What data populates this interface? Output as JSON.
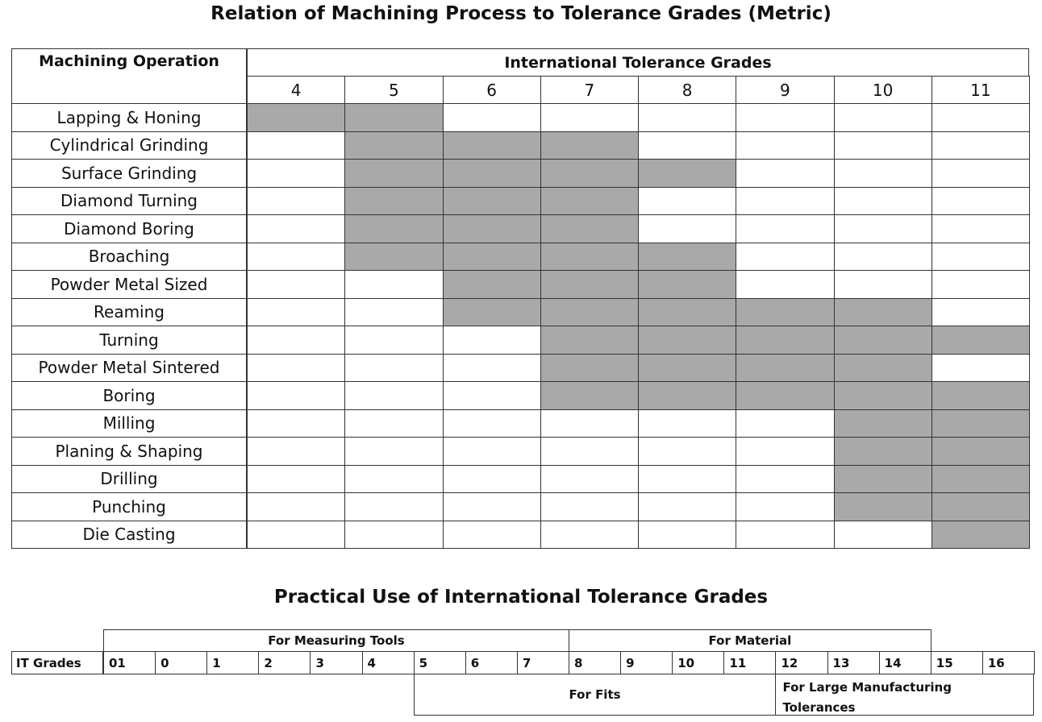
{
  "machining": {
    "title": "Relation of Machining Process to Tolerance Grades (Metric)",
    "operation_header": "Machining Operation",
    "grades_header": "International Tolerance Grades",
    "grades": [
      "4",
      "5",
      "6",
      "7",
      "8",
      "9",
      "10",
      "11"
    ],
    "rows": [
      {
        "operation": "Lapping & Honing",
        "shaded": [
          true,
          true,
          false,
          false,
          false,
          false,
          false,
          false
        ]
      },
      {
        "operation": "Cylindrical Grinding",
        "shaded": [
          false,
          true,
          true,
          true,
          false,
          false,
          false,
          false
        ]
      },
      {
        "operation": "Surface Grinding",
        "shaded": [
          false,
          true,
          true,
          true,
          true,
          false,
          false,
          false
        ]
      },
      {
        "operation": "Diamond Turning",
        "shaded": [
          false,
          true,
          true,
          true,
          false,
          false,
          false,
          false
        ]
      },
      {
        "operation": "Diamond Boring",
        "shaded": [
          false,
          true,
          true,
          true,
          false,
          false,
          false,
          false
        ]
      },
      {
        "operation": "Broaching",
        "shaded": [
          false,
          true,
          true,
          true,
          true,
          false,
          false,
          false
        ]
      },
      {
        "operation": "Powder Metal Sized",
        "shaded": [
          false,
          false,
          true,
          true,
          true,
          false,
          false,
          false
        ]
      },
      {
        "operation": "Reaming",
        "shaded": [
          false,
          false,
          true,
          true,
          true,
          true,
          true,
          false
        ]
      },
      {
        "operation": "Turning",
        "shaded": [
          false,
          false,
          false,
          true,
          true,
          true,
          true,
          true
        ]
      },
      {
        "operation": "Powder Metal Sintered",
        "shaded": [
          false,
          false,
          false,
          true,
          true,
          true,
          true,
          false
        ]
      },
      {
        "operation": "Boring",
        "shaded": [
          false,
          false,
          false,
          true,
          true,
          true,
          true,
          true
        ]
      },
      {
        "operation": "Milling",
        "shaded": [
          false,
          false,
          false,
          false,
          false,
          false,
          true,
          true
        ]
      },
      {
        "operation": "Planing & Shaping",
        "shaded": [
          false,
          false,
          false,
          false,
          false,
          false,
          true,
          true
        ]
      },
      {
        "operation": "Drilling",
        "shaded": [
          false,
          false,
          false,
          false,
          false,
          false,
          true,
          true
        ]
      },
      {
        "operation": "Punching",
        "shaded": [
          false,
          false,
          false,
          false,
          false,
          false,
          true,
          true
        ]
      },
      {
        "operation": "Die Casting",
        "shaded": [
          false,
          false,
          false,
          false,
          false,
          false,
          false,
          true
        ]
      }
    ],
    "shade_color": "#a9a9a9"
  },
  "practical": {
    "title": "Practical Use of International Tolerance Grades",
    "row_label": "IT Grades",
    "grades": [
      "01",
      "0",
      "1",
      "2",
      "3",
      "4",
      "5",
      "6",
      "7",
      "8",
      "9",
      "10",
      "11",
      "12",
      "13",
      "14",
      "15",
      "16"
    ],
    "top_spans": [
      "For Measuring Tools",
      "For Material"
    ],
    "bottom_spans": [
      "For Fits",
      "For Large Manufacturing Tolerances"
    ]
  }
}
